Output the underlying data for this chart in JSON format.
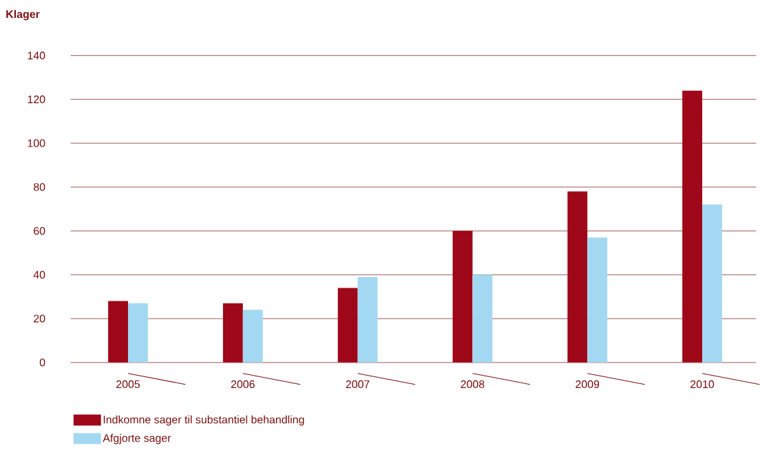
{
  "chart_data": {
    "type": "bar",
    "ylabel": "Klager",
    "categories": [
      "2005",
      "2006",
      "2007",
      "2008",
      "2009",
      "2010"
    ],
    "series": [
      {
        "name": "Indkomne sager til substantiel behandling",
        "color": "#9e0818",
        "values": [
          28,
          27,
          34,
          60,
          78,
          124
        ]
      },
      {
        "name": "Afgjorte sager",
        "color": "#a3d8f2",
        "values": [
          27,
          24,
          39,
          40,
          57,
          72
        ]
      }
    ],
    "ylim": [
      0,
      140
    ],
    "yticks": [
      0,
      20,
      40,
      60,
      80,
      100,
      120,
      140
    ],
    "grid": "y",
    "legend": "bottom"
  }
}
